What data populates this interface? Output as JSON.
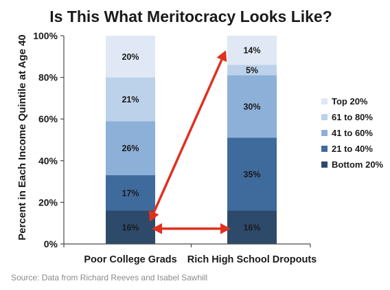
{
  "chart_data": {
    "type": "bar",
    "stacked": true,
    "title": "Is This What Meritocracy Looks Like?",
    "ylabel": "Percent in Each Income Quintile at Age 40",
    "ylim": [
      0,
      100
    ],
    "yticks": [
      "0%",
      "20%",
      "40%",
      "60%",
      "80%",
      "100%"
    ],
    "categories": [
      "Poor College Grads",
      "Rich High School Dropouts"
    ],
    "series": [
      {
        "name": "Bottom 20%",
        "values": [
          16,
          16
        ],
        "labels": [
          "16%",
          "16%"
        ],
        "color": "#2e4a6b"
      },
      {
        "name": "21 to 40%",
        "values": [
          17,
          35
        ],
        "labels": [
          "17%",
          "35%"
        ],
        "color": "#3f6a9c"
      },
      {
        "name": "41 to 60%",
        "values": [
          26,
          30
        ],
        "labels": [
          "26%",
          "30%"
        ],
        "color": "#8cb0d8"
      },
      {
        "name": "61 to 80%",
        "values": [
          21,
          5
        ],
        "labels": [
          "21%",
          "5%"
        ],
        "color": "#bcd1ea"
      },
      {
        "name": "Top 20%",
        "values": [
          20,
          14
        ],
        "labels": [
          "20%",
          "14%"
        ],
        "color": "#dfe8f4"
      }
    ],
    "legend_position": "right",
    "legend_order": [
      "Top 20%",
      "61 to 80%",
      "41 to 60%",
      "21 to 40%",
      "Bottom 20%"
    ],
    "annotations": [
      {
        "type": "double-arrow",
        "from": {
          "category": "Poor College Grads",
          "y": 8
        },
        "to": {
          "category": "Rich High School Dropouts",
          "y": 8
        },
        "color": "#e0301e"
      },
      {
        "type": "double-arrow",
        "from": {
          "category": "Poor College Grads",
          "y": 8
        },
        "to": {
          "category": "Rich High School Dropouts",
          "y": 93
        },
        "color": "#e0301e"
      }
    ],
    "grid": false
  },
  "source": "Source: Data from Richard Reeves and Isabel Sawhill"
}
